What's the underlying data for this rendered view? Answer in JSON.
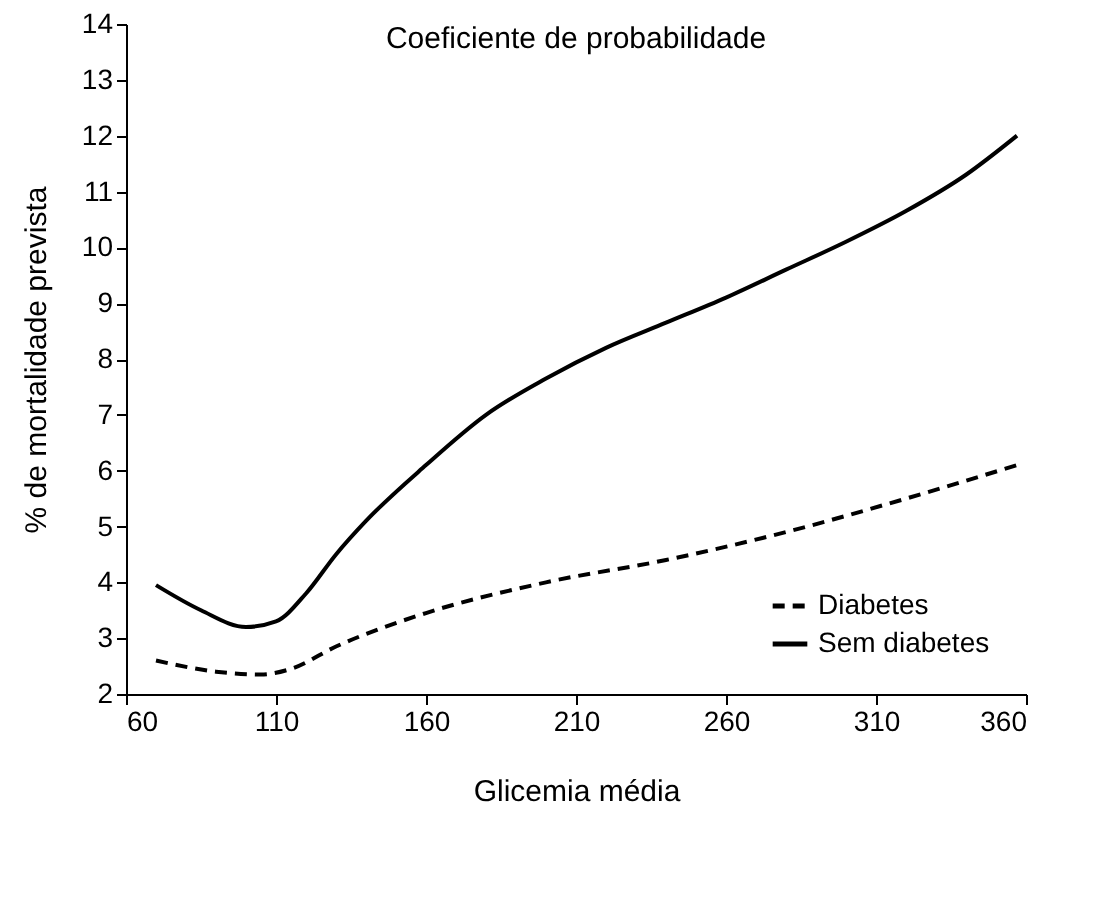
{
  "chart_data": {
    "type": "line",
    "title": "Coeficiente de probabilidade",
    "xlabel": "Glicemia média",
    "ylabel": "% de mortalidade prevista",
    "xlim": [
      60,
      360
    ],
    "xticks": [
      60,
      110,
      160,
      210,
      260,
      310,
      360
    ],
    "ylim": [
      2,
      14
    ],
    "yticks": [
      2,
      3,
      4,
      5,
      6,
      7,
      8,
      9,
      10,
      11,
      12,
      13,
      14
    ],
    "grid": false,
    "legend": "bottom right",
    "series": [
      {
        "name": "Diabetes",
        "color": "#000000",
        "line_style": "dashed",
        "x": [
          70,
          90,
          105,
          115,
          130,
          160,
          200,
          240,
          280,
          320,
          357
        ],
        "values": [
          2.6,
          2.4,
          2.35,
          2.45,
          2.85,
          3.45,
          4.0,
          4.4,
          4.9,
          5.5,
          6.1
        ]
      },
      {
        "name": "Sem diabetes",
        "color": "#000000",
        "line_style": "solid",
        "x": [
          70,
          85,
          100,
          110,
          120,
          130,
          140,
          160,
          180,
          200,
          220,
          240,
          260,
          280,
          300,
          320,
          340,
          357
        ],
        "values": [
          3.95,
          3.5,
          3.2,
          3.3,
          3.8,
          4.5,
          5.1,
          6.1,
          7.0,
          7.65,
          8.2,
          8.65,
          9.1,
          9.6,
          10.1,
          10.65,
          11.3,
          12.0
        ]
      }
    ]
  }
}
